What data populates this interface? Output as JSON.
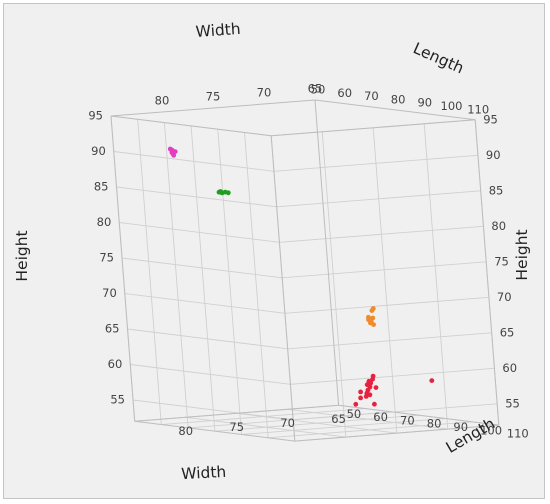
{
  "chart_data": {
    "type": "scatter",
    "projection": "3d",
    "grid": true,
    "axes": {
      "width": {
        "label": "Width",
        "range": [
          65,
          85
        ],
        "ticks": [
          65,
          70,
          75,
          80
        ],
        "reversed": true
      },
      "length": {
        "label": "Length",
        "range": [
          50,
          110
        ],
        "ticks": [
          50,
          60,
          70,
          80,
          90,
          100,
          110
        ]
      },
      "height": {
        "label": "Height",
        "range": [
          52,
          95
        ],
        "ticks": [
          55,
          60,
          65,
          70,
          75,
          80,
          85,
          90,
          95
        ]
      }
    },
    "series": [
      {
        "color": "#e43ec0",
        "points": [
          {
            "width": 79.5,
            "length": 50.8,
            "height": 89.6
          },
          {
            "width": 79.6,
            "length": 51.0,
            "height": 89.3
          },
          {
            "width": 79.4,
            "length": 50.6,
            "height": 89.1
          },
          {
            "width": 79.5,
            "length": 51.2,
            "height": 88.9
          },
          {
            "width": 79.7,
            "length": 50.9,
            "height": 89.8
          },
          {
            "width": 79.3,
            "length": 51.1,
            "height": 89.4
          }
        ]
      },
      {
        "color": "#1f9e1f",
        "points": [
          {
            "width": 76.6,
            "length": 56.0,
            "height": 83.6
          },
          {
            "width": 76.4,
            "length": 56.4,
            "height": 83.5
          },
          {
            "width": 76.2,
            "length": 56.8,
            "height": 83.6
          },
          {
            "width": 76.0,
            "length": 57.2,
            "height": 83.5
          },
          {
            "width": 76.5,
            "length": 56.2,
            "height": 83.7
          }
        ]
      },
      {
        "color": "#f08a2a",
        "points": [
          {
            "width": 66.1,
            "length": 70.2,
            "height": 66.7
          },
          {
            "width": 66.2,
            "length": 70.0,
            "height": 66.4
          },
          {
            "width": 66.3,
            "length": 70.5,
            "height": 65.4
          },
          {
            "width": 66.6,
            "length": 70.8,
            "height": 65.0
          },
          {
            "width": 66.8,
            "length": 71.4,
            "height": 64.8
          },
          {
            "width": 66.4,
            "length": 71.0,
            "height": 64.5
          },
          {
            "width": 66.7,
            "length": 70.4,
            "height": 65.2
          },
          {
            "width": 66.9,
            "length": 71.2,
            "height": 65.6
          },
          {
            "width": 66.5,
            "length": 70.6,
            "height": 64.9
          }
        ]
      },
      {
        "color": "#e8213f",
        "points": [
          {
            "width": 65.8,
            "length": 67.0,
            "height": 57.0
          },
          {
            "width": 66.0,
            "length": 67.5,
            "height": 56.6
          },
          {
            "width": 66.3,
            "length": 67.8,
            "height": 56.1
          },
          {
            "width": 66.5,
            "length": 68.2,
            "height": 55.6
          },
          {
            "width": 66.8,
            "length": 68.5,
            "height": 55.2
          },
          {
            "width": 67.0,
            "length": 68.8,
            "height": 54.8
          },
          {
            "width": 67.2,
            "length": 69.2,
            "height": 54.4
          },
          {
            "width": 66.6,
            "length": 67.6,
            "height": 55.9
          },
          {
            "width": 66.1,
            "length": 68.9,
            "height": 55.5
          },
          {
            "width": 67.4,
            "length": 68.0,
            "height": 55.0
          },
          {
            "width": 66.9,
            "length": 69.5,
            "height": 54.6
          },
          {
            "width": 66.2,
            "length": 66.8,
            "height": 56.3
          },
          {
            "width": 67.6,
            "length": 68.6,
            "height": 54.2
          },
          {
            "width": 68.6,
            "length": 70.5,
            "height": 53.5
          },
          {
            "width": 66.4,
            "length": 69.0,
            "height": 53.2
          },
          {
            "width": 64.5,
            "length": 84.0,
            "height": 57.0
          }
        ]
      }
    ]
  }
}
